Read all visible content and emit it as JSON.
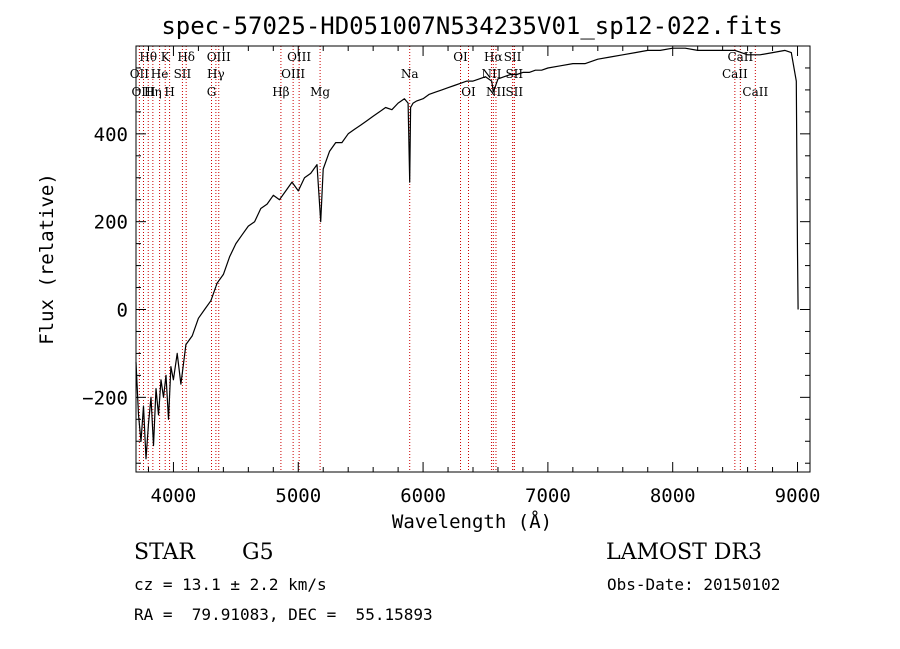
{
  "chart_data": {
    "type": "line",
    "title": "spec-57025-HD051007N534235V01_sp12-022.fits",
    "xlabel": "Wavelength (Å)",
    "ylabel": "Flux (relative)",
    "xlim": [
      3700,
      9100
    ],
    "ylim": [
      -370,
      600
    ],
    "xticks": [
      4000,
      5000,
      6000,
      7000,
      8000,
      9000
    ],
    "yticks": [
      -200,
      0,
      200,
      400
    ],
    "series": [
      {
        "name": "flux",
        "x": [
          3700,
          3720,
          3740,
          3760,
          3780,
          3800,
          3820,
          3840,
          3860,
          3880,
          3900,
          3920,
          3940,
          3960,
          3980,
          4000,
          4030,
          4060,
          4100,
          4150,
          4200,
          4250,
          4300,
          4350,
          4400,
          4450,
          4500,
          4550,
          4600,
          4650,
          4700,
          4750,
          4800,
          4850,
          4900,
          4950,
          5000,
          5050,
          5100,
          5150,
          5180,
          5200,
          5250,
          5300,
          5350,
          5400,
          5450,
          5500,
          5550,
          5600,
          5650,
          5700,
          5750,
          5800,
          5850,
          5880,
          5893,
          5900,
          5920,
          5950,
          6000,
          6050,
          6100,
          6150,
          6200,
          6250,
          6300,
          6350,
          6400,
          6450,
          6500,
          6550,
          6563,
          6600,
          6650,
          6700,
          6750,
          6800,
          6850,
          6900,
          6950,
          7000,
          7100,
          7200,
          7300,
          7400,
          7500,
          7600,
          7700,
          7800,
          7900,
          8000,
          8100,
          8200,
          8300,
          8400,
          8500,
          8600,
          8700,
          8800,
          8900,
          8950,
          8990,
          9000,
          9005
        ],
        "y": [
          -120,
          -240,
          -300,
          -220,
          -340,
          -260,
          -200,
          -310,
          -180,
          -240,
          -160,
          -200,
          -150,
          -250,
          -130,
          -160,
          -100,
          -170,
          -80,
          -60,
          -20,
          0,
          20,
          60,
          80,
          120,
          150,
          170,
          190,
          200,
          230,
          240,
          260,
          250,
          270,
          290,
          270,
          300,
          310,
          330,
          200,
          320,
          360,
          380,
          380,
          400,
          410,
          420,
          430,
          440,
          450,
          460,
          455,
          470,
          480,
          470,
          290,
          460,
          470,
          475,
          480,
          490,
          495,
          500,
          505,
          510,
          515,
          520,
          520,
          525,
          530,
          520,
          495,
          525,
          530,
          535,
          535,
          540,
          540,
          545,
          545,
          550,
          555,
          560,
          560,
          570,
          575,
          580,
          585,
          590,
          590,
          595,
          595,
          590,
          590,
          590,
          590,
          580,
          580,
          585,
          590,
          585,
          520,
          130,
          0
        ]
      }
    ],
    "spectral_lines": [
      {
        "label": "Hθ",
        "wavelength": 3798,
        "row": 1
      },
      {
        "label": "He",
        "wavelength": 3889,
        "row": 2
      },
      {
        "label": "K",
        "wavelength": 3934,
        "row": 1
      },
      {
        "label": "Hδ",
        "wavelength": 4102,
        "row": 1
      },
      {
        "label": "OII",
        "wavelength": 3727,
        "row": 2
      },
      {
        "label": "OIII",
        "wavelength": 3760,
        "row": 3
      },
      {
        "label": "Hη",
        "wavelength": 3835,
        "row": 3
      },
      {
        "label": "H",
        "wavelength": 3969,
        "row": 3
      },
      {
        "label": "SII",
        "wavelength": 4072,
        "row": 2
      },
      {
        "label": "OIII",
        "wavelength": 4363,
        "row": 1
      },
      {
        "label": "Hγ",
        "wavelength": 4340,
        "row": 2
      },
      {
        "label": "G",
        "wavelength": 4305,
        "row": 3
      },
      {
        "label": "Hβ",
        "wavelength": 4861,
        "row": 3
      },
      {
        "label": "OIII",
        "wavelength": 5007,
        "row": 1
      },
      {
        "label": "OIII",
        "wavelength": 4959,
        "row": 2
      },
      {
        "label": "Mg",
        "wavelength": 5175,
        "row": 3
      },
      {
        "label": "Na",
        "wavelength": 5893,
        "row": 2
      },
      {
        "label": "OI",
        "wavelength": 6300,
        "row": 1
      },
      {
        "label": "OI",
        "wavelength": 6364,
        "row": 3
      },
      {
        "label": "Hα",
        "wavelength": 6563,
        "row": 1
      },
      {
        "label": "NII",
        "wavelength": 6548,
        "row": 2
      },
      {
        "label": "NII",
        "wavelength": 6584,
        "row": 3
      },
      {
        "label": "SII",
        "wavelength": 6717,
        "row": 1
      },
      {
        "label": "SII",
        "wavelength": 6731,
        "row": 2
      },
      {
        "label": "SII",
        "wavelength": 6731,
        "row": 3
      },
      {
        "label": "CaII",
        "wavelength": 8498,
        "row": 2
      },
      {
        "label": "CaII",
        "wavelength": 8542,
        "row": 1
      },
      {
        "label": "CaII",
        "wavelength": 8662,
        "row": 3
      }
    ]
  },
  "info": {
    "object_class": "STAR",
    "subclass": "G5",
    "survey": "LAMOST DR3",
    "redshift": "cz = 13.1 ± 2.2 km/s",
    "obs_date": "Obs-Date: 20150102",
    "coords": "RA =  79.91083, DEC =  55.15893"
  },
  "colors": {
    "line_marker": "#cc0000",
    "spectrum": "#000000"
  }
}
